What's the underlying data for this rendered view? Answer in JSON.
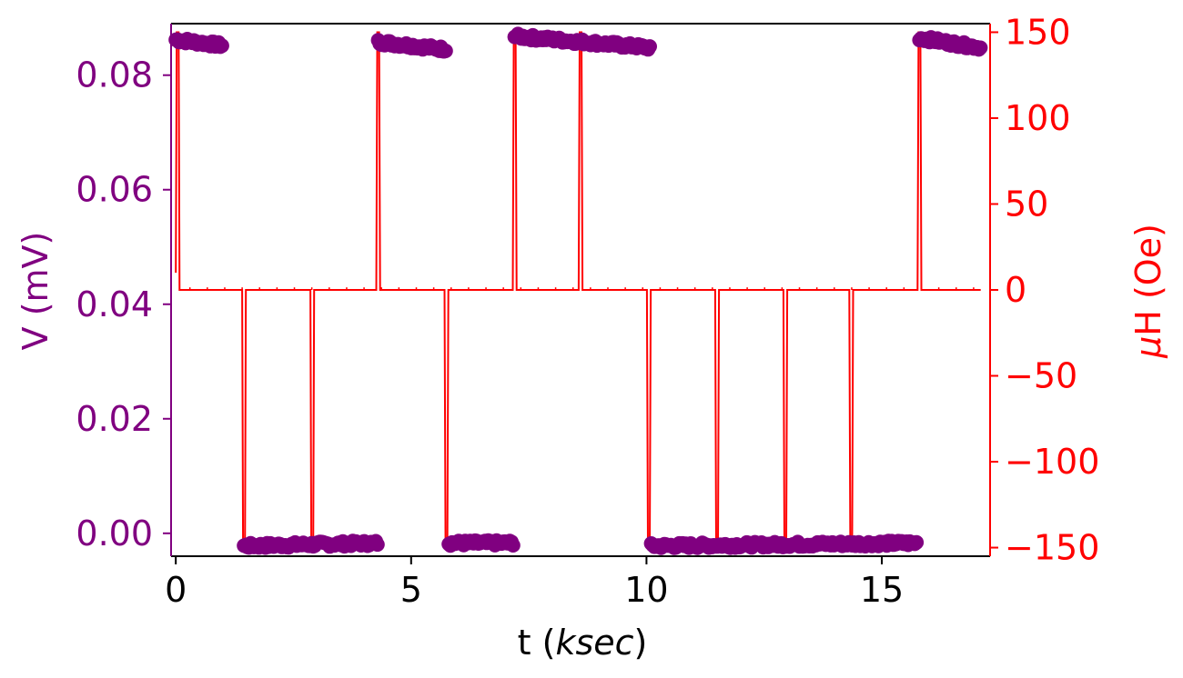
{
  "chart_data": {
    "type": "line",
    "xlabel_main": "t (",
    "xlabel_italic": "ksec",
    "xlabel_end": ")",
    "ylabel_left": "V (mV)",
    "ylabel_right_mu": "μ",
    "ylabel_right_rest": "H (Oe)",
    "xlim": [
      -0.1,
      17.3
    ],
    "ylim_left": [
      -0.004,
      0.089
    ],
    "ylim_right": [
      -155,
      155
    ],
    "xticks": [
      0,
      5,
      10,
      15
    ],
    "xtick_labels": [
      "0",
      "5",
      "10",
      "15"
    ],
    "yticks_left": [
      0.0,
      0.02,
      0.04,
      0.06,
      0.08
    ],
    "ytick_labels_left": [
      "0.00",
      "0.02",
      "0.04",
      "0.06",
      "0.08"
    ],
    "yticks_right": [
      -150,
      -100,
      -50,
      0,
      50,
      100,
      150
    ],
    "ytick_labels_right": [
      "−150",
      "−100",
      "−50",
      "0",
      "50",
      "100",
      "150"
    ],
    "colors": {
      "voltage": "#800080",
      "field": "#ff0000",
      "axes": "#000000"
    },
    "series": [
      {
        "axis": "left",
        "style": "markers",
        "segments": [
          {
            "t_start": 0.0,
            "t_end": 1.0,
            "v_start": 0.0862,
            "v_end": 0.0852
          },
          {
            "t_start": 1.45,
            "t_end": 4.3,
            "v_start": -0.0022,
            "v_end": -0.0017
          },
          {
            "t_start": 4.3,
            "t_end": 5.75,
            "v_start": 0.0858,
            "v_end": 0.0845
          },
          {
            "t_start": 5.8,
            "t_end": 7.2,
            "v_start": -0.0017,
            "v_end": -0.0017
          },
          {
            "t_start": 7.2,
            "t_end": 10.1,
            "v_start": 0.0868,
            "v_end": 0.0848
          },
          {
            "t_start": 10.1,
            "t_end": 15.75,
            "v_start": -0.0022,
            "v_end": -0.0017
          },
          {
            "t_start": 15.8,
            "t_end": 17.1,
            "v_start": 0.0865,
            "v_end": 0.0848
          }
        ]
      },
      {
        "axis": "right",
        "style": "line",
        "pulses": [
          {
            "t": 0.02,
            "h": 150
          },
          {
            "t": 1.45,
            "h": -150
          },
          {
            "t": 2.9,
            "h": -150
          },
          {
            "t": 4.3,
            "h": 150
          },
          {
            "t": 5.75,
            "h": -150
          },
          {
            "t": 7.2,
            "h": 150
          },
          {
            "t": 8.6,
            "h": 150
          },
          {
            "t": 10.05,
            "h": -150
          },
          {
            "t": 11.5,
            "h": -150
          },
          {
            "t": 12.95,
            "h": -150
          },
          {
            "t": 14.35,
            "h": -150
          },
          {
            "t": 15.8,
            "h": 150
          }
        ],
        "baseline": 0,
        "t_end": 17.1
      }
    ]
  }
}
